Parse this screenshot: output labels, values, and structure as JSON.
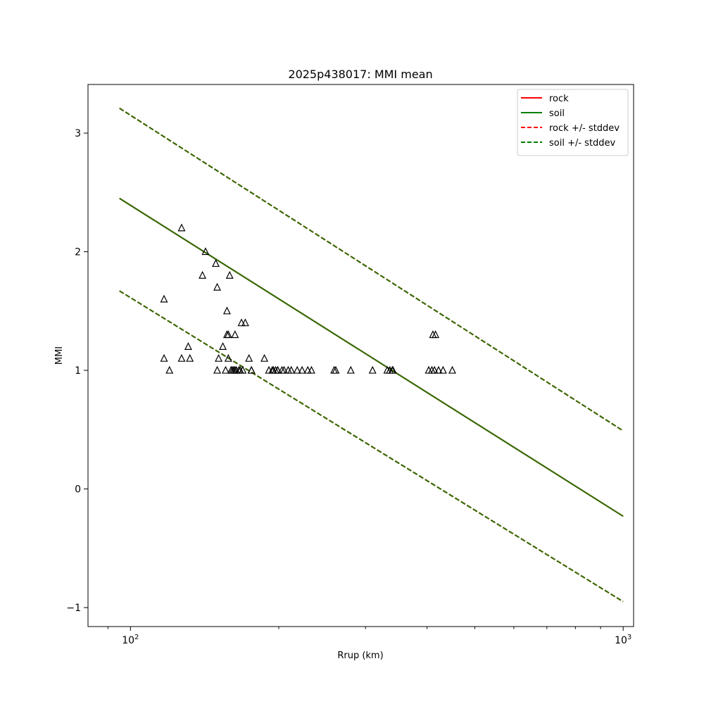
{
  "chart_data": {
    "type": "scatter",
    "title": "2025p438017: MMI mean",
    "xlabel": "Rrup (km)",
    "ylabel": "MMI",
    "xscale": "log",
    "xlim": [
      82,
      1050
    ],
    "ylim": [
      -1.16,
      3.41
    ],
    "x_major_ticks": [
      {
        "value": 100,
        "base": "10",
        "exp": "2"
      },
      {
        "value": 1000,
        "base": "10",
        "exp": "3"
      }
    ],
    "y_ticks": [
      {
        "value": -1,
        "label": "−1"
      },
      {
        "value": 0,
        "label": "0"
      },
      {
        "value": 1,
        "label": "1"
      },
      {
        "value": 2,
        "label": "2"
      },
      {
        "value": 3,
        "label": "3"
      }
    ],
    "grid": false,
    "legend": {
      "placement": "upper right",
      "entries": [
        {
          "label": "rock",
          "color": "#ff0000",
          "dash": "solid"
        },
        {
          "label": "soil",
          "color": "#008000",
          "dash": "solid"
        },
        {
          "label": "rock +/- stddev",
          "color": "#ff0000",
          "dash": "dashed"
        },
        {
          "label": "soil +/- stddev",
          "color": "#008000",
          "dash": "dashed"
        }
      ]
    },
    "lines": [
      {
        "name": "rock",
        "color": "#ff0000",
        "dash": "solid",
        "x": [
          95,
          1000
        ],
        "y": [
          2.45,
          -0.23
        ]
      },
      {
        "name": "soil",
        "color": "#2a6e00",
        "dash": "solid",
        "x": [
          95,
          1000
        ],
        "y": [
          2.45,
          -0.23
        ]
      },
      {
        "name": "rock +/- stddev",
        "color": "#ff0000",
        "dash": "dashed",
        "x": [
          95,
          1000
        ],
        "y": [
          3.21,
          0.49
        ]
      },
      {
        "name": "rock +/- stddev",
        "color": "#ff0000",
        "dash": "dashed",
        "x": [
          95,
          1000
        ],
        "y": [
          1.67,
          -0.95
        ]
      },
      {
        "name": "soil +/- stddev",
        "color": "#2a6e00",
        "dash": "dashed",
        "x": [
          95,
          1000
        ],
        "y": [
          3.21,
          0.49
        ]
      },
      {
        "name": "soil +/- stddev",
        "color": "#2a6e00",
        "dash": "dashed",
        "x": [
          95,
          1000
        ],
        "y": [
          1.67,
          -0.95
        ]
      }
    ],
    "points": {
      "marker": "triangle",
      "color": "#000000",
      "x": [
        117,
        117,
        120,
        127,
        127,
        131,
        132,
        140,
        142,
        149,
        150,
        150,
        151,
        154,
        156,
        157,
        157,
        158,
        158,
        159,
        160,
        161,
        162,
        163,
        163,
        164,
        166,
        167,
        168,
        169,
        171,
        174,
        176,
        176,
        187,
        191,
        194,
        195,
        197,
        199,
        199,
        203,
        205,
        209,
        212,
        218,
        223,
        229,
        233,
        259,
        261,
        280,
        310,
        332,
        336,
        340,
        341,
        403,
        409,
        411,
        414,
        416,
        422,
        431,
        450
      ],
      "y": [
        1.6,
        1.1,
        1.0,
        2.2,
        1.1,
        1.2,
        1.1,
        1.8,
        2.0,
        1.9,
        1.0,
        1.7,
        1.1,
        1.2,
        1.0,
        1.5,
        1.3,
        1.3,
        1.1,
        1.8,
        1.0,
        1.0,
        1.0,
        1.0,
        1.3,
        1.0,
        1.0,
        1.0,
        1.4,
        1.0,
        1.4,
        1.1,
        1.0,
        1.0,
        1.1,
        1.0,
        1.0,
        1.0,
        1.0,
        1.0,
        1.0,
        1.0,
        1.0,
        1.0,
        1.0,
        1.0,
        1.0,
        1.0,
        1.0,
        1.0,
        1.0,
        1.0,
        1.0,
        1.0,
        1.0,
        1.0,
        1.0,
        1.0,
        1.0,
        1.3,
        1.0,
        1.3,
        1.0,
        1.0,
        1.0
      ]
    }
  }
}
